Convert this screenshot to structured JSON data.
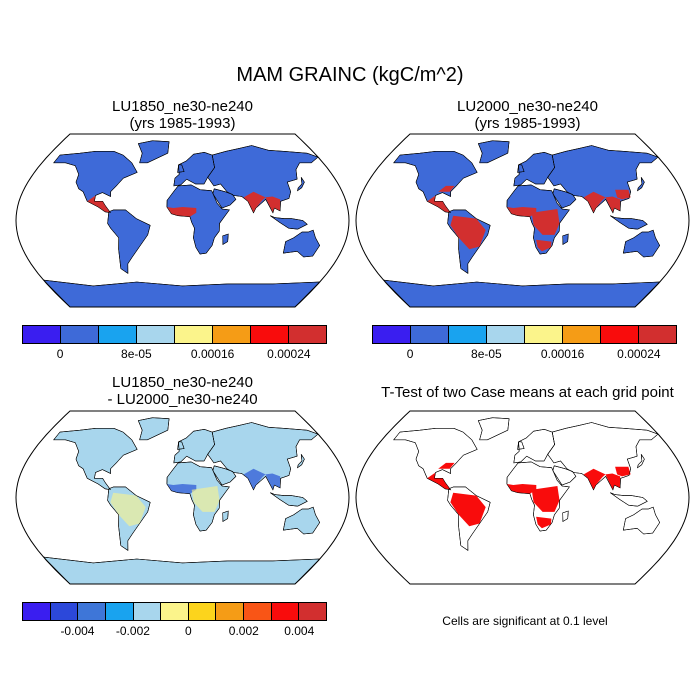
{
  "title": "MAM GRAINC (kgC/m^2)",
  "panels": [
    {
      "title": "LU1850_ne30-ne240\n(yrs 1985-1993)"
    },
    {
      "title": "LU2000_ne30-ne240\n(yrs 1985-1993)"
    },
    {
      "title": "LU1850_ne30-ne240\n- LU2000_ne30-ne240"
    },
    {
      "title": "T-Test of two Case means at each grid point"
    }
  ],
  "colorbar_top": {
    "colors": [
      "#3a1ef0",
      "#3e6ad8",
      "#19a3ef",
      "#a8d6ed",
      "#fbf48b",
      "#f59c16",
      "#f90c0c",
      "#d22f2f"
    ],
    "labels": [
      "0",
      "8e-05",
      "0.00016",
      "0.00024"
    ],
    "label_values": [
      0,
      8e-05,
      0.00016,
      0.00024
    ]
  },
  "colorbar_diff": {
    "colors": [
      "#3a1ef0",
      "#2c48da",
      "#3e76d8",
      "#19a3ef",
      "#a8d6ed",
      "#fbf48b",
      "#fcd41c",
      "#f59c16",
      "#f95516",
      "#f90c0c",
      "#d22f2f"
    ],
    "labels": [
      "-0.004",
      "-0.002",
      "0",
      "0.002",
      "0.004"
    ],
    "label_values": [
      -0.004,
      -0.002,
      0,
      0.002,
      0.004
    ]
  },
  "ttest_note": "Cells are significant at 0.1 level",
  "colors": {
    "land_low": "#3e6ad8",
    "high": "#d22f2f",
    "diff_bg": "#a8d6ed",
    "signif": "#f90c0c"
  }
}
